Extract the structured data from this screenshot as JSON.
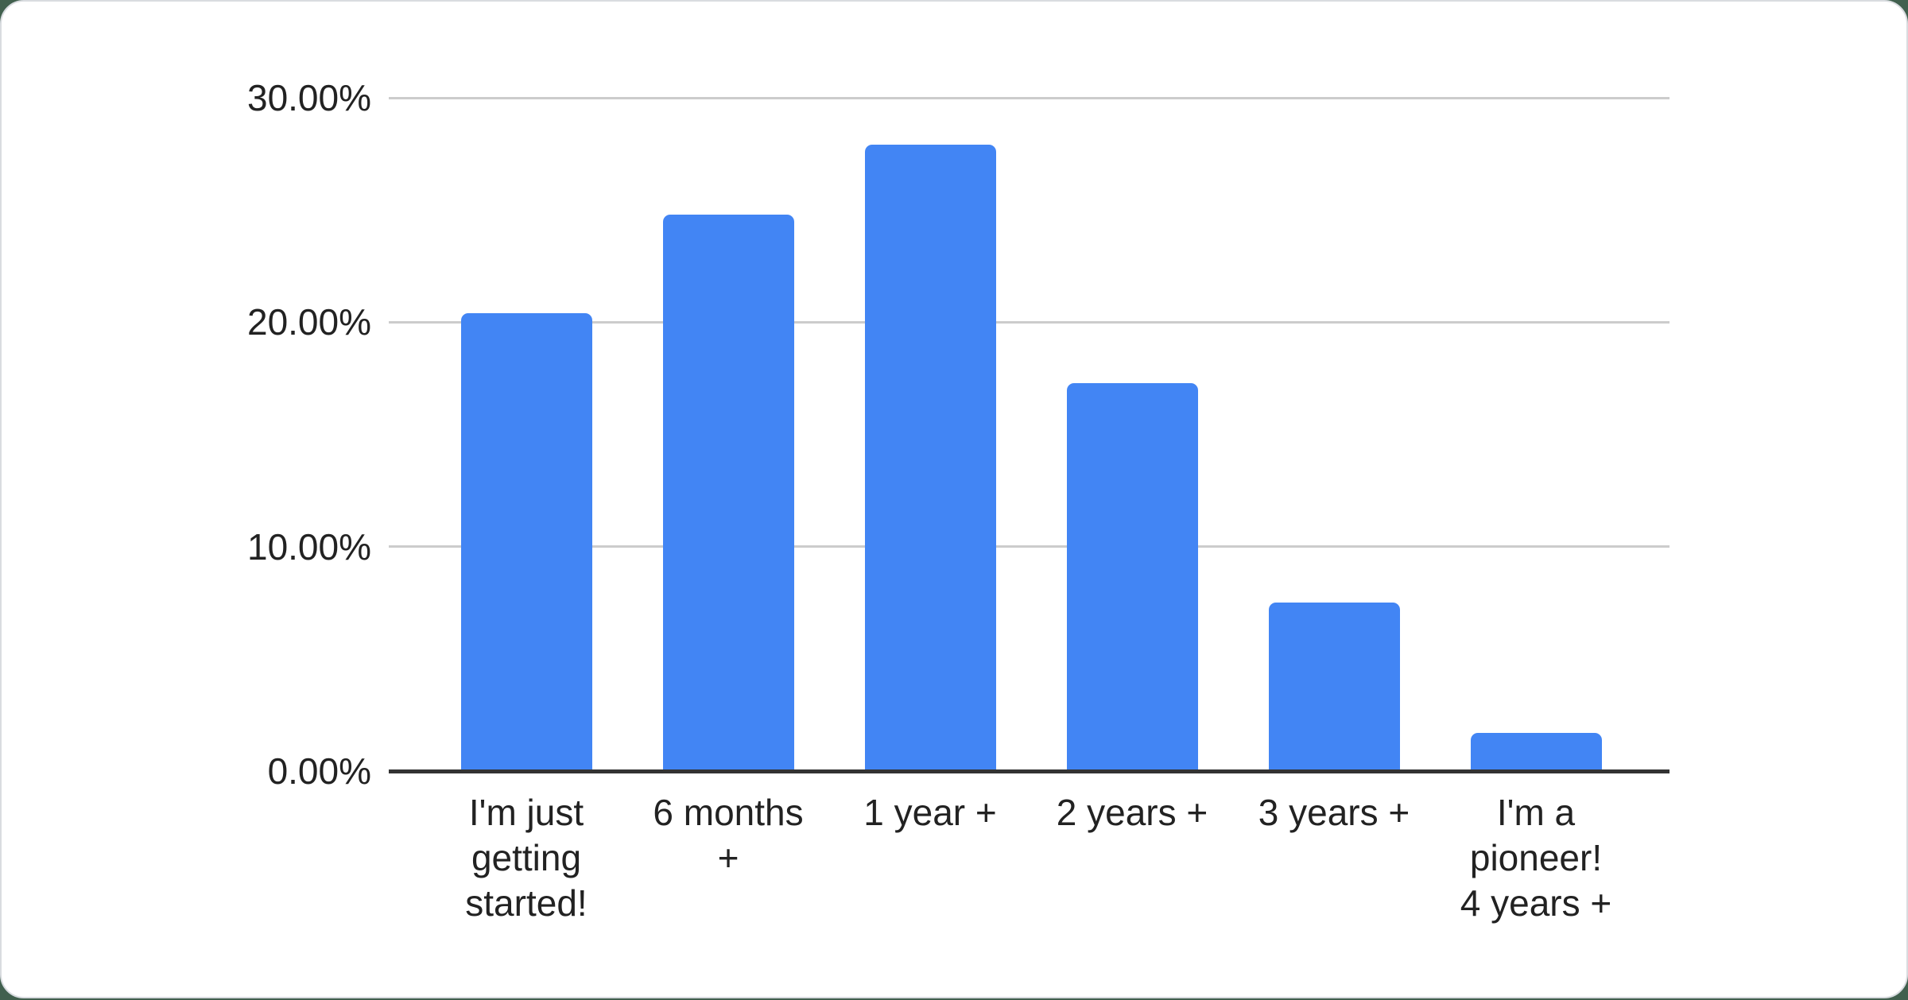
{
  "page": {
    "background_color": "#41604e",
    "card_color": "#ffffff",
    "card_border_color": "#d9dce0"
  },
  "chart_data": {
    "type": "bar",
    "title": "",
    "xlabel": "",
    "ylabel": "",
    "categories": [
      "I'm just getting started!",
      "6 months +",
      "1 year +",
      "2 years +",
      "3 years +",
      "I'm a pioneer! 4 years +"
    ],
    "category_lines": [
      [
        "I'm just",
        "getting",
        "started!"
      ],
      [
        "6 months",
        "+"
      ],
      [
        "1 year +"
      ],
      [
        "2 years +"
      ],
      [
        "3 years +"
      ],
      [
        "I'm a",
        "pioneer!",
        "4 years +"
      ]
    ],
    "values": [
      20.4,
      24.8,
      27.9,
      17.3,
      7.5,
      1.7
    ],
    "value_unit": "%",
    "ylim": [
      0,
      30
    ],
    "y_ticks": [
      {
        "label": "30.00%",
        "value": 30
      },
      {
        "label": "20.00%",
        "value": 20
      },
      {
        "label": "10.00%",
        "value": 10
      },
      {
        "label": "0.00%",
        "value": 0
      }
    ],
    "grid": true,
    "legend_position": "none",
    "bar_color": "#4285f4",
    "gridline_color": "#cccccc",
    "axis_line_color": "#333333",
    "text_color": "#222222"
  }
}
